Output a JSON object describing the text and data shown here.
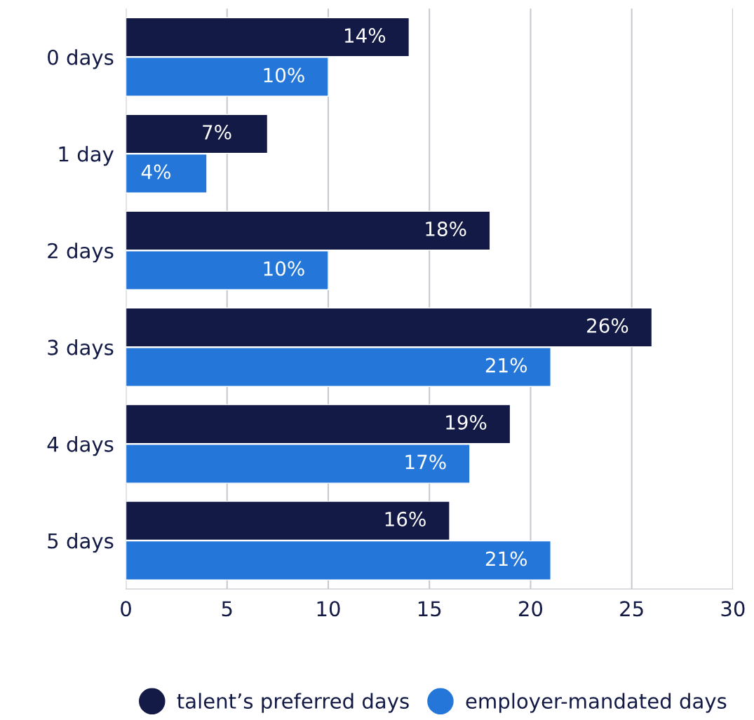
{
  "chart_data": {
    "type": "bar",
    "orientation": "horizontal",
    "categories": [
      "0 days",
      "1 day",
      "2 days",
      "3 days",
      "4 days",
      "5 days"
    ],
    "series": [
      {
        "name": "talent’s preferred days",
        "color": "#131a45",
        "values": [
          14,
          7,
          18,
          26,
          19,
          16
        ],
        "value_labels": [
          "14%",
          "7%",
          "18%",
          "26%",
          "19%",
          "16%"
        ]
      },
      {
        "name": "employer-mandated days",
        "color": "#2477d9",
        "values": [
          10,
          4,
          10,
          21,
          17,
          21
        ],
        "value_labels": [
          "10%",
          "4%",
          "10%",
          "21%",
          "17%",
          "21%"
        ]
      }
    ],
    "xlim": [
      0,
      30
    ],
    "xticks": [
      0,
      5,
      10,
      15,
      20,
      25,
      30
    ],
    "grid": "x",
    "legend": "bottom"
  }
}
